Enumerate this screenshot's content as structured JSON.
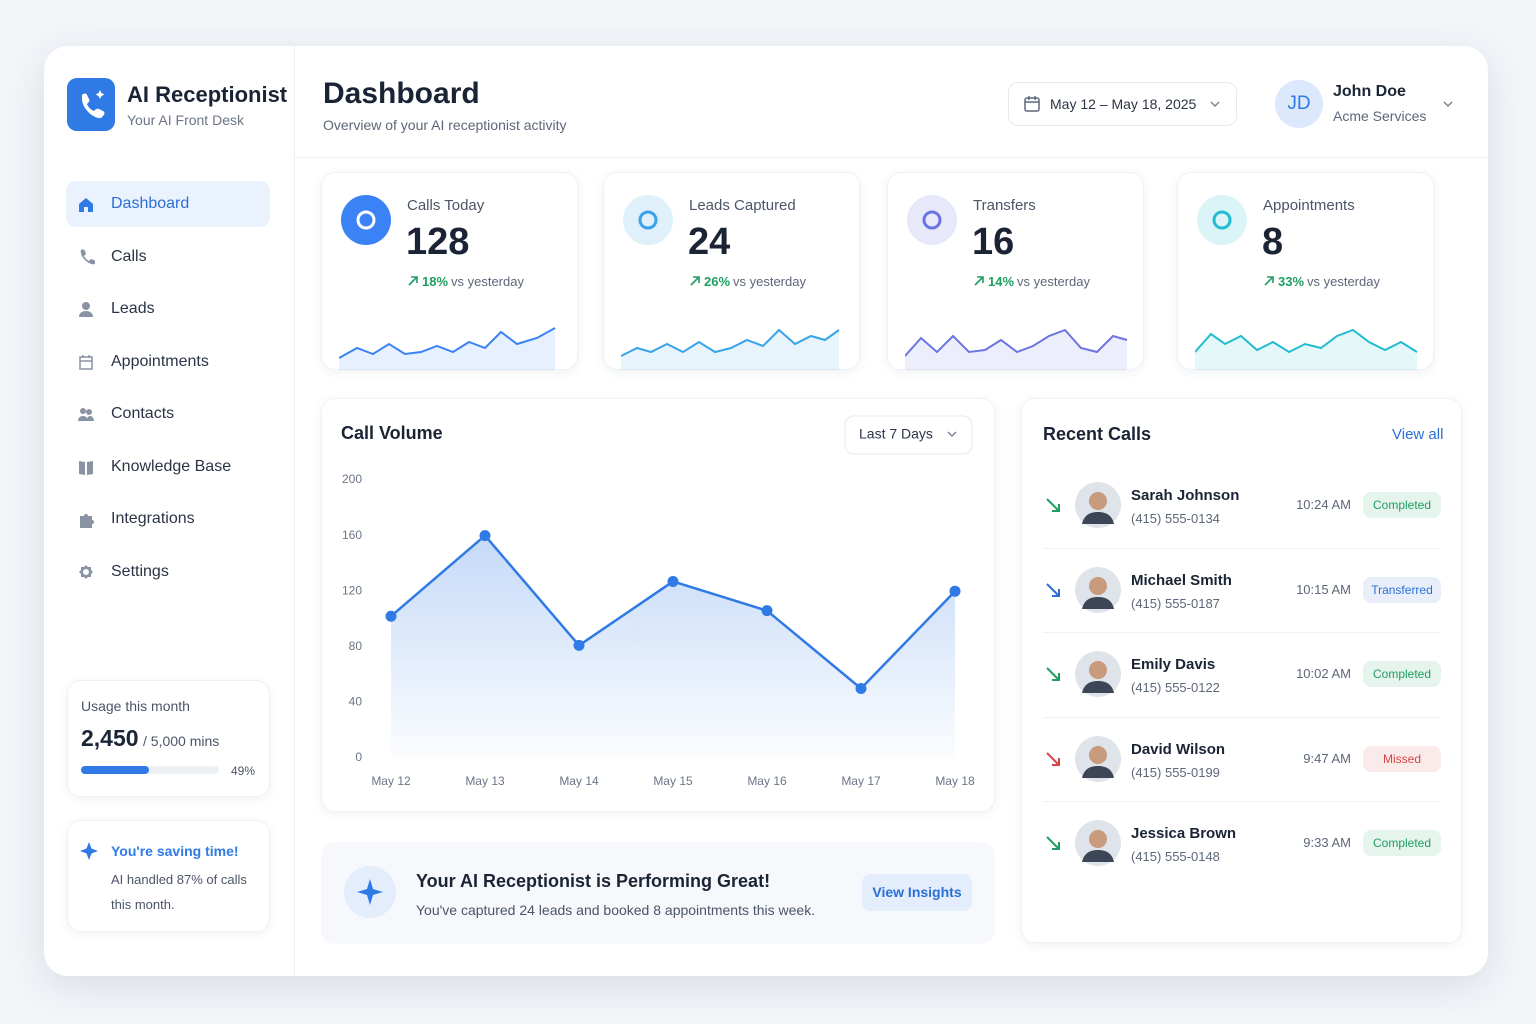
{
  "sidebar": {
    "brand": {
      "title": "AI Receptionist",
      "subtitle": "Your AI Front Desk"
    },
    "nav": [
      "Dashboard",
      "Calls",
      "Leads",
      "Appointments",
      "Contacts",
      "Knowledge Base",
      "Integrations",
      "Settings"
    ],
    "usage": {
      "label": "Usage this month",
      "used": "2,450",
      "total": "/ 5,000 mins",
      "progress": {
        "value": 49,
        "label": "49%"
      }
    },
    "tip": {
      "title": "You're saving time!",
      "text": "AI handled 87% of calls this month."
    }
  },
  "header": {
    "title": "Dashboard",
    "subtitle": "Overview of your AI receptionist activity",
    "date_range": "May 12 – May 18, 2025",
    "user": {
      "initials": "JD",
      "name": "John Doe",
      "company": "Acme Services"
    }
  },
  "stats": [
    {
      "label": "Calls Today",
      "value": 128,
      "change": "18%",
      "change_text": "vs yesterday",
      "color": "#3b82f6"
    },
    {
      "label": "Leads Captured",
      "value": 24,
      "change": "26%",
      "change_text": "vs yesterday",
      "color": "#38a3e8"
    },
    {
      "label": "Transfers",
      "value": 16,
      "change": "14%",
      "change_text": "vs yesterday",
      "color": "#6b74e0"
    },
    {
      "label": "Appointments",
      "value": 8,
      "change": "33%",
      "change_text": "vs yesterday",
      "color": "#22bcd0"
    }
  ],
  "chart_data": {
    "type": "line",
    "title": "Call Volume",
    "filter": "Last 7 Days",
    "categories": [
      "May 12",
      "May 13",
      "May 14",
      "May 15",
      "May 16",
      "May 17",
      "May 18"
    ],
    "series": [
      {
        "color": "#2f7ae5",
        "values": [
          102,
          160,
          81,
          127,
          106,
          50,
          120
        ]
      }
    ],
    "ylim": [
      0,
      200
    ],
    "yticks": [
      0,
      40,
      80,
      120,
      160,
      200
    ]
  },
  "recent_calls": {
    "title": "Recent Calls",
    "link": "View all",
    "calls": [
      {
        "name": "Sarah Johnson",
        "phone": "(415) 555-0134",
        "time": "10:24 AM",
        "status": "Completed",
        "color": "#1f9d62"
      },
      {
        "name": "Michael Smith",
        "phone": "(415) 555-0187",
        "time": "10:15 AM",
        "status": "Transferred",
        "color": "#2a6fd6"
      },
      {
        "name": "Emily Davis",
        "phone": "(415) 555-0122",
        "time": "10:02 AM",
        "status": "Completed",
        "color": "#1f9d62"
      },
      {
        "name": "David Wilson",
        "phone": "(415) 555-0199",
        "time": "9:47 AM",
        "status": "Missed",
        "color": "#d64545"
      },
      {
        "name": "Jessica Brown",
        "phone": "(415) 555-0148",
        "time": "9:33 AM",
        "status": "Completed",
        "color": "#1f9d62"
      }
    ]
  },
  "banner": {
    "title": "Your AI Receptionist is Performing Great!",
    "text": "You've captured 24 leads and booked 8 appointments this week.",
    "button": "View Insights"
  }
}
